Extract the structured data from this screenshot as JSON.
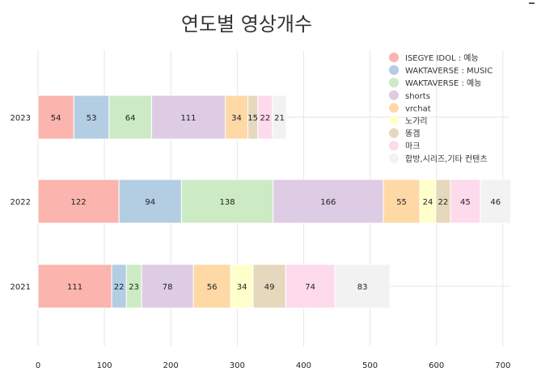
{
  "chart_data": {
    "type": "bar",
    "orientation": "horizontal",
    "stacked": true,
    "title": "연도별 영상개수",
    "categories": [
      "2021",
      "2022",
      "2023"
    ],
    "series": [
      {
        "name": "ISEGYE IDOL : 예능",
        "color": "#fbb4ae",
        "values": [
          111,
          122,
          54
        ]
      },
      {
        "name": "WAKTAVERSE : MUSIC",
        "color": "#b3cde3",
        "values": [
          22,
          94,
          53
        ]
      },
      {
        "name": "WAKTAVERSE : 예능",
        "color": "#ccebc5",
        "values": [
          23,
          138,
          64
        ]
      },
      {
        "name": "shorts",
        "color": "#decbe4",
        "values": [
          78,
          166,
          111
        ]
      },
      {
        "name": "vrchat",
        "color": "#fed9a6",
        "values": [
          56,
          55,
          34
        ]
      },
      {
        "name": "노가리",
        "color": "#ffffcc",
        "values": [
          34,
          24,
          0
        ]
      },
      {
        "name": "똥겜",
        "color": "#e5d8bd",
        "values": [
          49,
          22,
          15
        ]
      },
      {
        "name": "마크",
        "color": "#fddaec",
        "values": [
          74,
          45,
          22
        ]
      },
      {
        "name": "합방,시리즈,기타 컨텐츠",
        "color": "#f2f2f2",
        "values": [
          83,
          46,
          21
        ]
      }
    ],
    "xlim": [
      0,
      710
    ],
    "xticks": [
      0,
      100,
      200,
      300,
      400,
      500,
      600,
      700
    ],
    "grid": true,
    "legend": "top-right"
  }
}
